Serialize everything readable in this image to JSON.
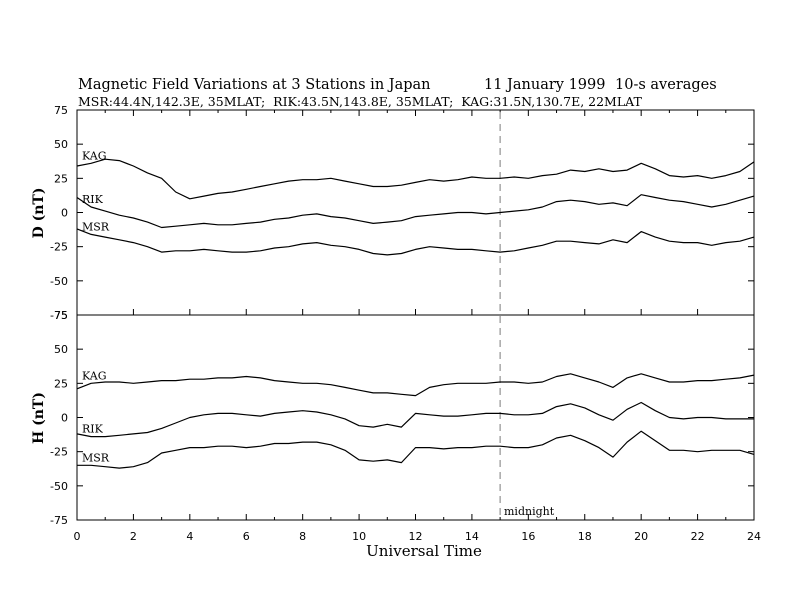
{
  "chart_data": {
    "type": "line",
    "title": "Magnetic Field Variations at 3 Stations in Japan",
    "date": "11 January 1999",
    "averaging": "10-s averages",
    "subtitle": "MSR:44.4N,142.3E, 35MLAT;  RIK:43.5N,143.8E, 35MLAT;  KAG:31.5N,130.7E, 22MLAT",
    "xlabel": "Universal Time",
    "xlim": [
      0,
      24
    ],
    "xticks": [
      0,
      2,
      4,
      6,
      8,
      10,
      12,
      14,
      16,
      18,
      20,
      22,
      24
    ],
    "marker": {
      "x": 15,
      "label": "midnight"
    },
    "panels": [
      {
        "ylabel": "D (nT)",
        "ylim": [
          -75,
          75
        ],
        "yticks": [
          -75,
          -50,
          -25,
          0,
          25,
          50,
          75
        ],
        "series": [
          {
            "name": "KAG",
            "x": [
              0,
              0.5,
              1,
              1.5,
              2,
              2.5,
              3,
              3.5,
              4,
              4.5,
              5,
              5.5,
              6,
              6.5,
              7,
              7.5,
              8,
              8.5,
              9,
              9.5,
              10,
              10.5,
              11,
              11.5,
              12,
              12.5,
              13,
              13.5,
              14,
              14.5,
              15,
              15.5,
              16,
              16.5,
              17,
              17.5,
              18,
              18.5,
              19,
              19.5,
              20,
              20.5,
              21,
              21.5,
              22,
              22.5,
              23,
              23.5,
              24
            ],
            "values": [
              34,
              36,
              39,
              38,
              34,
              29,
              25,
              15,
              10,
              12,
              14,
              15,
              17,
              19,
              21,
              23,
              24,
              24,
              25,
              23,
              21,
              19,
              19,
              20,
              22,
              24,
              23,
              24,
              26,
              25,
              25,
              26,
              25,
              27,
              28,
              31,
              30,
              32,
              30,
              31,
              36,
              32,
              27,
              26,
              27,
              25,
              27,
              30,
              37
            ]
          },
          {
            "name": "RIK",
            "x": [
              0,
              0.5,
              1,
              1.5,
              2,
              2.5,
              3,
              3.5,
              4,
              4.5,
              5,
              5.5,
              6,
              6.5,
              7,
              7.5,
              8,
              8.5,
              9,
              9.5,
              10,
              10.5,
              11,
              11.5,
              12,
              12.5,
              13,
              13.5,
              14,
              14.5,
              15,
              15.5,
              16,
              16.5,
              17,
              17.5,
              18,
              18.5,
              19,
              19.5,
              20,
              20.5,
              21,
              21.5,
              22,
              22.5,
              23,
              23.5,
              24
            ],
            "values": [
              11,
              4,
              1,
              -2,
              -4,
              -7,
              -11,
              -10,
              -9,
              -8,
              -9,
              -9,
              -8,
              -7,
              -5,
              -4,
              -2,
              -1,
              -3,
              -4,
              -6,
              -8,
              -7,
              -6,
              -3,
              -2,
              -1,
              0,
              0,
              -1,
              0,
              1,
              2,
              4,
              8,
              9,
              8,
              6,
              7,
              5,
              13,
              11,
              9,
              8,
              6,
              4,
              6,
              9,
              12
            ]
          },
          {
            "name": "MSR",
            "x": [
              0,
              0.5,
              1,
              1.5,
              2,
              2.5,
              3,
              3.5,
              4,
              4.5,
              5,
              5.5,
              6,
              6.5,
              7,
              7.5,
              8,
              8.5,
              9,
              9.5,
              10,
              10.5,
              11,
              11.5,
              12,
              12.5,
              13,
              13.5,
              14,
              14.5,
              15,
              15.5,
              16,
              16.5,
              17,
              17.5,
              18,
              18.5,
              19,
              19.5,
              20,
              20.5,
              21,
              21.5,
              22,
              22.5,
              23,
              23.5,
              24
            ],
            "values": [
              -12,
              -16,
              -18,
              -20,
              -22,
              -25,
              -29,
              -28,
              -28,
              -27,
              -28,
              -29,
              -29,
              -28,
              -26,
              -25,
              -23,
              -22,
              -24,
              -25,
              -27,
              -30,
              -31,
              -30,
              -27,
              -25,
              -26,
              -27,
              -27,
              -28,
              -29,
              -28,
              -26,
              -24,
              -21,
              -21,
              -22,
              -23,
              -20,
              -22,
              -14,
              -18,
              -21,
              -22,
              -22,
              -24,
              -22,
              -21,
              -18
            ]
          }
        ]
      },
      {
        "ylabel": "H (nT)",
        "ylim": [
          -75,
          75
        ],
        "yticks": [
          -75,
          -50,
          -25,
          0,
          25,
          50,
          75
        ],
        "series": [
          {
            "name": "KAG",
            "x": [
              0,
              0.5,
              1,
              1.5,
              2,
              2.5,
              3,
              3.5,
              4,
              4.5,
              5,
              5.5,
              6,
              6.5,
              7,
              7.5,
              8,
              8.5,
              9,
              9.5,
              10,
              10.5,
              11,
              11.5,
              12,
              12.5,
              13,
              13.5,
              14,
              14.5,
              15,
              15.5,
              16,
              16.5,
              17,
              17.5,
              18,
              18.5,
              19,
              19.5,
              20,
              20.5,
              21,
              21.5,
              22,
              22.5,
              23,
              23.5,
              24
            ],
            "values": [
              21,
              25,
              26,
              26,
              25,
              26,
              27,
              27,
              28,
              28,
              29,
              29,
              30,
              29,
              27,
              26,
              25,
              25,
              24,
              22,
              20,
              18,
              18,
              17,
              16,
              22,
              24,
              25,
              25,
              25,
              26,
              26,
              25,
              26,
              30,
              32,
              29,
              26,
              22,
              29,
              32,
              29,
              26,
              26,
              27,
              27,
              28,
              29,
              31
            ]
          },
          {
            "name": "RIK",
            "x": [
              0,
              0.5,
              1,
              1.5,
              2,
              2.5,
              3,
              3.5,
              4,
              4.5,
              5,
              5.5,
              6,
              6.5,
              7,
              7.5,
              8,
              8.5,
              9,
              9.5,
              10,
              10.5,
              11,
              11.5,
              12,
              12.5,
              13,
              13.5,
              14,
              14.5,
              15,
              15.5,
              16,
              16.5,
              17,
              17.5,
              18,
              18.5,
              19,
              19.5,
              20,
              20.5,
              21,
              21.5,
              22,
              22.5,
              23,
              23.5,
              24
            ],
            "values": [
              -12,
              -14,
              -14,
              -13,
              -12,
              -11,
              -8,
              -4,
              0,
              2,
              3,
              3,
              2,
              1,
              3,
              4,
              5,
              4,
              2,
              -1,
              -6,
              -7,
              -5,
              -7,
              3,
              2,
              1,
              1,
              2,
              3,
              3,
              2,
              2,
              3,
              8,
              10,
              7,
              2,
              -2,
              6,
              11,
              5,
              0,
              -1,
              0,
              0,
              -1,
              -1,
              -1
            ]
          },
          {
            "name": "MSR",
            "x": [
              0,
              0.5,
              1,
              1.5,
              2,
              2.5,
              3,
              3.5,
              4,
              4.5,
              5,
              5.5,
              6,
              6.5,
              7,
              7.5,
              8,
              8.5,
              9,
              9.5,
              10,
              10.5,
              11,
              11.5,
              12,
              12.5,
              13,
              13.5,
              14,
              14.5,
              15,
              15.5,
              16,
              16.5,
              17,
              17.5,
              18,
              18.5,
              19,
              19.5,
              20,
              20.5,
              21,
              21.5,
              22,
              22.5,
              23,
              23.5,
              24
            ],
            "values": [
              -35,
              -35,
              -36,
              -37,
              -36,
              -33,
              -26,
              -24,
              -22,
              -22,
              -21,
              -21,
              -22,
              -21,
              -19,
              -19,
              -18,
              -18,
              -20,
              -24,
              -31,
              -32,
              -31,
              -33,
              -22,
              -22,
              -23,
              -22,
              -22,
              -21,
              -21,
              -22,
              -22,
              -20,
              -15,
              -13,
              -17,
              -22,
              -29,
              -18,
              -10,
              -17,
              -24,
              -24,
              -25,
              -24,
              -24,
              -24,
              -27
            ]
          }
        ]
      }
    ]
  }
}
